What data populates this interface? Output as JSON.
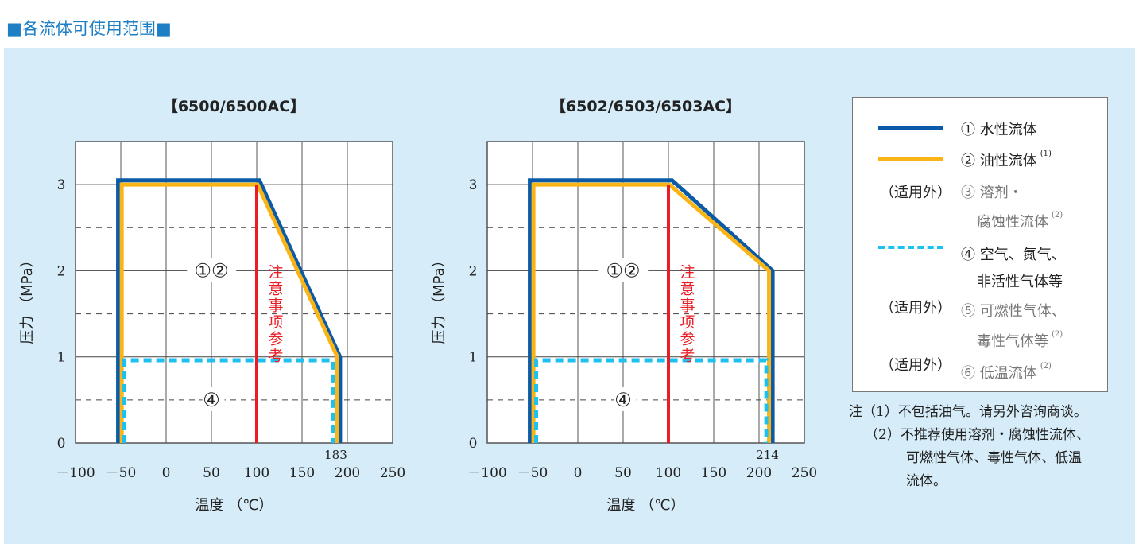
{
  "title": "■各流体可使用范围■",
  "colors": {
    "water": "#0a5aa8",
    "oil": "#fbb415",
    "gas": "#1ec0ef",
    "caution": "#ea1c24",
    "panel": "#d6ecf8"
  },
  "chart_data": [
    {
      "type": "line",
      "title": "【6500/6500AC】",
      "xlabel": "温度 （℃）",
      "ylabel": "压力 （MPa）",
      "xlim": [
        -100,
        250
      ],
      "ylim": [
        0,
        3.5
      ],
      "xticks": [
        "－100",
        "－50",
        "0",
        "50",
        "100",
        "150",
        "200",
        "250"
      ],
      "yticks": [
        "0",
        "1",
        "2",
        "3"
      ],
      "series": [
        {
          "name": "① 水性流体",
          "points": [
            [
              -53,
              0
            ],
            [
              -53,
              3.05
            ],
            [
              103,
              3.05
            ],
            [
              192,
              1
            ],
            [
              192,
              0
            ]
          ]
        },
        {
          "name": "② 油性流体",
          "points": [
            [
              -49,
              0
            ],
            [
              -49,
              3
            ],
            [
              101,
              3
            ],
            [
              189,
              1
            ],
            [
              189,
              0
            ]
          ]
        },
        {
          "name": "④ 空气、氮气、非活性气体等",
          "points": [
            [
              -46,
              0
            ],
            [
              -46,
              0.96
            ],
            [
              184,
              0.96
            ],
            [
              184,
              0
            ]
          ]
        }
      ],
      "caution_x": 100,
      "caution_label": "注意事项参考",
      "region_labels": {
        "r12": "①②",
        "r4": "④"
      },
      "max_temp_label": "183"
    },
    {
      "type": "line",
      "title": "【6502/6503/6503AC】",
      "xlabel": "温度 （℃）",
      "ylabel": "压力 （MPa）",
      "xlim": [
        -100,
        250
      ],
      "ylim": [
        0,
        3.5
      ],
      "xticks": [
        "－100",
        "－50",
        "0",
        "50",
        "100",
        "150",
        "200",
        "250"
      ],
      "yticks": [
        "0",
        "1",
        "2",
        "3"
      ],
      "series": [
        {
          "name": "① 水性流体",
          "points": [
            [
              -53,
              0
            ],
            [
              -53,
              3.05
            ],
            [
              104,
              3.05
            ],
            [
              215,
              2
            ],
            [
              215,
              0
            ]
          ]
        },
        {
          "name": "② 油性流体",
          "points": [
            [
              -49,
              0
            ],
            [
              -49,
              3
            ],
            [
              101,
              3
            ],
            [
              211,
              2
            ],
            [
              211,
              0
            ]
          ]
        },
        {
          "name": "④ 空气、氮气、非活性气体等",
          "points": [
            [
              -46,
              0
            ],
            [
              -46,
              0.96
            ],
            [
              208,
              0.96
            ],
            [
              208,
              0
            ]
          ]
        }
      ],
      "caution_x": 100,
      "caution_label": "注意事项参考",
      "region_labels": {
        "r12": "①②",
        "r4": "④"
      },
      "max_temp_label": "214"
    }
  ],
  "legend": {
    "item1": "① 水性流体",
    "item2": "② 油性流体",
    "sup1": "(1)",
    "excl": "（适用外）",
    "item3a": "③ 溶剂・",
    "item3b": "腐蚀性流体",
    "sup2": "(2)",
    "item4a": "④ 空气、氮气、",
    "item4b": "非活性气体等",
    "item5a": "⑤ 可燃性气体、",
    "item5b": "毒性气体等",
    "item6": "⑥ 低温流体"
  },
  "notes": [
    "注（1）不包括油气。请另外咨询商谈。",
    "（2）不推荐使用溶剂・腐蚀性流体、",
    "可燃性气体、毒性气体、低温",
    "流体。"
  ]
}
